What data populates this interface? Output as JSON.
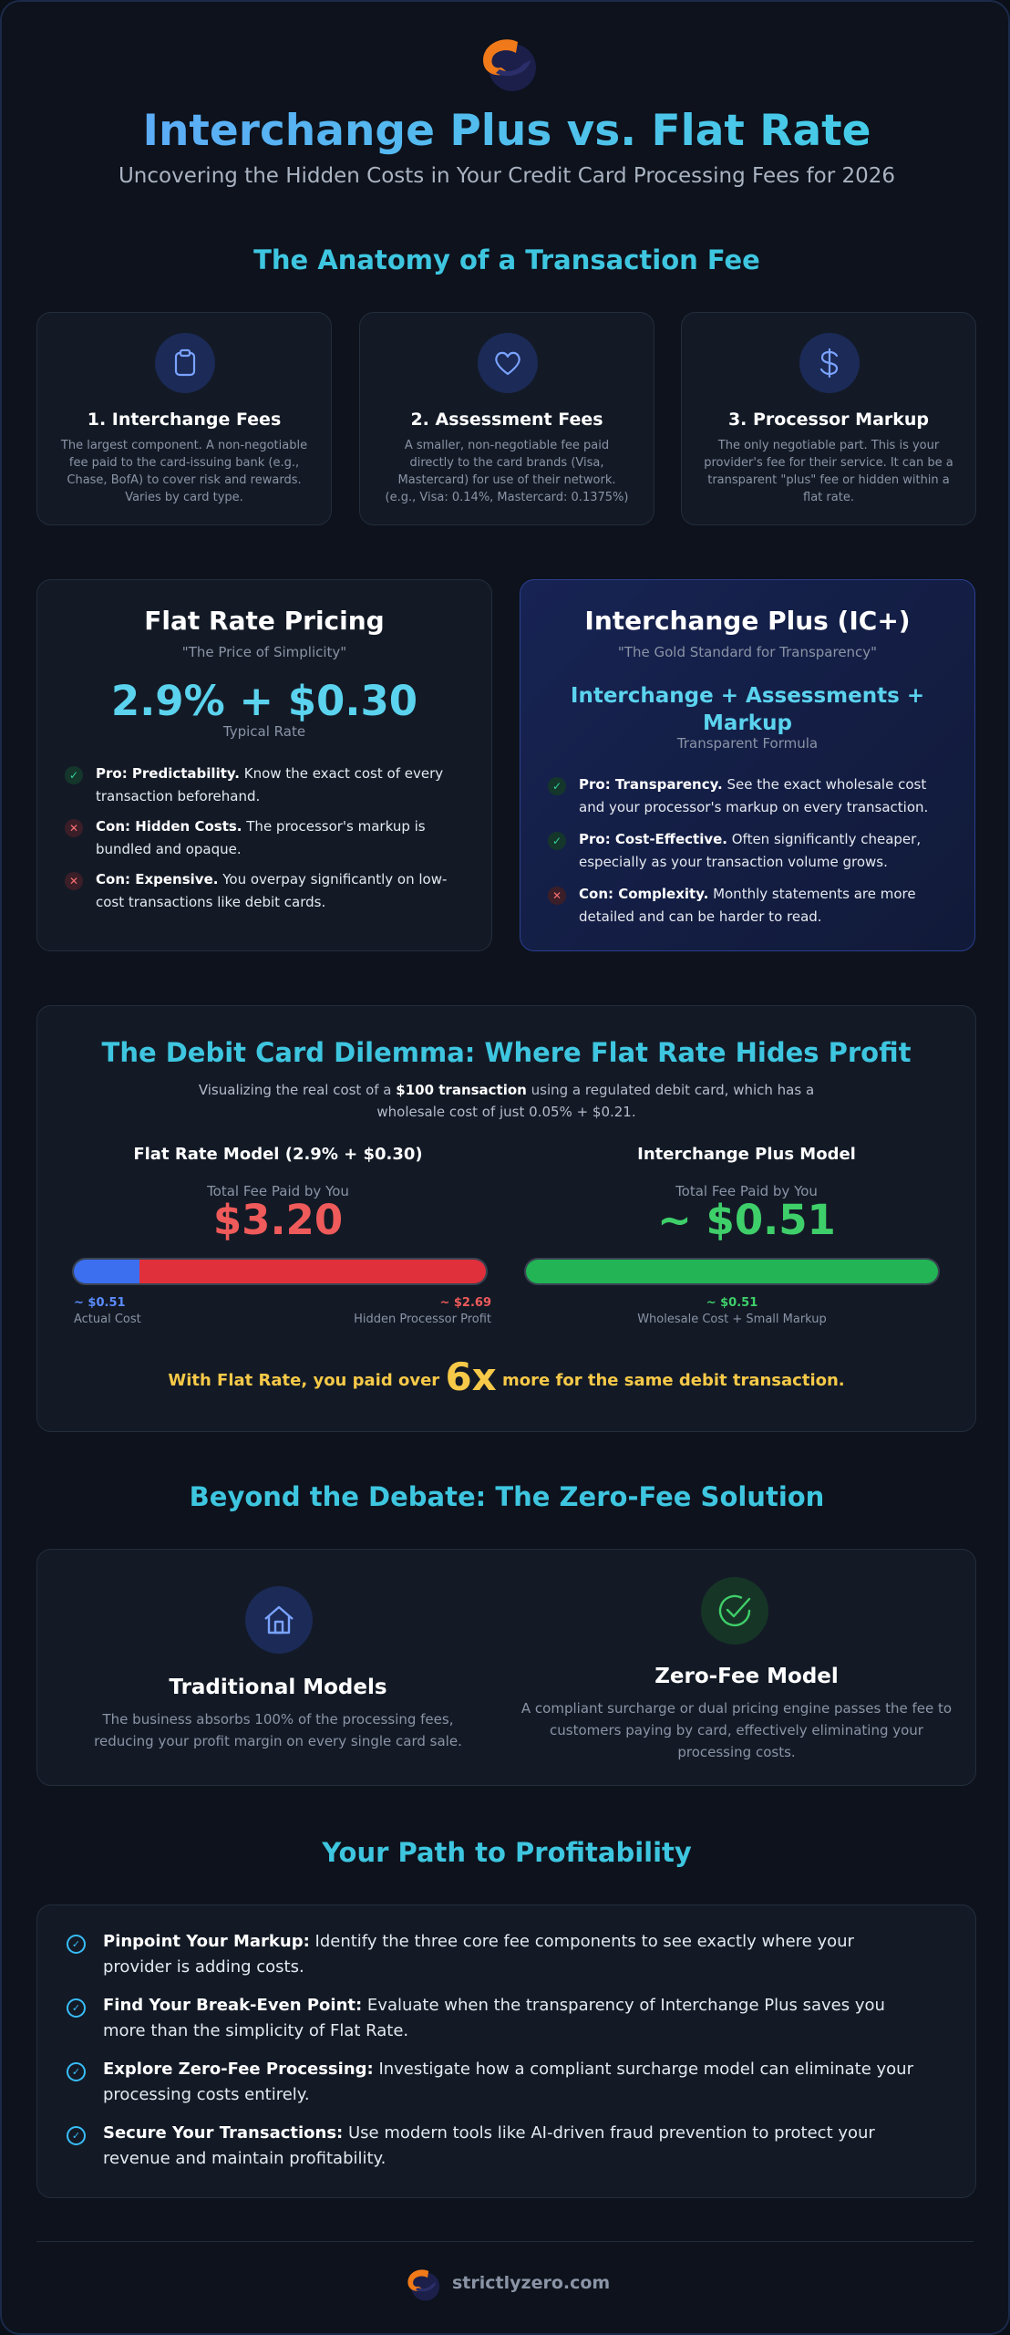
{
  "header": {
    "title": "Interchange Plus vs. Flat Rate",
    "subtitle": "Uncovering the Hidden Costs in Your Credit Card Processing Fees for 2026"
  },
  "anatomy": {
    "title": "The Anatomy of a Transaction Fee",
    "cards": [
      {
        "icon": "clipboard-icon",
        "title": "1. Interchange Fees",
        "desc": "The largest component. A non-negotiable fee paid to the card-issuing bank (e.g., Chase, BofA) to cover risk and rewards. Varies by card type."
      },
      {
        "icon": "heart-icon",
        "title": "2. Assessment Fees",
        "desc": "A smaller, non-negotiable fee paid directly to the card brands (Visa, Mastercard) for use of their network. (e.g., Visa: 0.14%, Mastercard: 0.1375%)"
      },
      {
        "icon": "dollar-icon",
        "title": "3. Processor Markup",
        "desc": "The only negotiable part. This is your provider's fee for their service. It can be a transparent \"plus\" fee or hidden within a flat rate."
      }
    ]
  },
  "flat_rate": {
    "title": "Flat Rate Pricing",
    "quote": "\"The Price of Simplicity\"",
    "price": "2.9% + $0.30",
    "price_caption": "Typical Rate",
    "items": [
      {
        "type": "pro",
        "label": "Pro: Predictability.",
        "text": " Know the exact cost of every transaction beforehand."
      },
      {
        "type": "con",
        "label": "Con: Hidden Costs.",
        "text": " The processor's markup is bundled and opaque."
      },
      {
        "type": "con",
        "label": "Con: Expensive.",
        "text": " You overpay significantly on low-cost transactions like debit cards."
      }
    ]
  },
  "ic_plus": {
    "title": "Interchange Plus (IC+)",
    "quote": "\"The Gold Standard for Transparency\"",
    "formula": "Interchange + Assessments + Markup",
    "formula_caption": "Transparent Formula",
    "items": [
      {
        "type": "pro",
        "label": "Pro: Transparency.",
        "text": " See the exact wholesale cost and your processor's markup on every transaction."
      },
      {
        "type": "pro",
        "label": "Pro: Cost-Effective.",
        "text": " Often significantly cheaper, especially as your transaction volume grows."
      },
      {
        "type": "con",
        "label": "Con: Complexity.",
        "text": " Monthly statements are more detailed and can be harder to read."
      }
    ]
  },
  "dilemma": {
    "title": "The Debit Card Dilemma: Where Flat Rate Hides Profit",
    "intro_before": "Visualizing the real cost of a ",
    "intro_bold": "$100 transaction",
    "intro_after": " using a regulated debit card, which has a wholesale cost of just 0.05% + $0.21.",
    "flat": {
      "heading": "Flat Rate Model (2.9% + $0.30)",
      "fee_label": "Total Fee Paid by You",
      "fee": "$3.20",
      "actual_share": 0.16,
      "actual_value": "~ $0.51",
      "actual_label": "Actual Cost",
      "hidden_value": "~ $2.69",
      "hidden_label": "Hidden Processor Profit"
    },
    "icplus": {
      "heading": "Interchange Plus Model",
      "fee_label": "Total Fee Paid by You",
      "fee": "~ $0.51",
      "value": "~ $0.51",
      "label": "Wholesale Cost + Small Markup"
    },
    "conclusion_before": "With Flat Rate, you paid over ",
    "conclusion_big": "6x",
    "conclusion_after": " more for the same debit transaction.",
    "colors": {
      "actual": "#3b6ff0",
      "hidden": "#e0303c",
      "icplus": "#22b455",
      "warning": "#f7c948"
    }
  },
  "zero_fee": {
    "title": "Beyond the Debate: The Zero-Fee Solution",
    "traditional": {
      "icon": "house-icon",
      "title": "Traditional Models",
      "desc": "The business absorbs 100% of the processing fees, reducing your profit margin on every single card sale."
    },
    "zero": {
      "icon": "check-circle-icon",
      "title": "Zero-Fee Model",
      "desc": "A compliant surcharge or dual pricing engine passes the fee to customers paying by card, effectively eliminating your processing costs."
    }
  },
  "path": {
    "title": "Your Path to Profitability",
    "items": [
      {
        "label": "Pinpoint Your Markup:",
        "text": " Identify the three core fee components to see exactly where your provider is adding costs."
      },
      {
        "label": "Find Your Break-Even Point:",
        "text": " Evaluate when the transparency of Interchange Plus saves you more than the simplicity of Flat Rate."
      },
      {
        "label": "Explore Zero-Fee Processing:",
        "text": " Investigate how a compliant surcharge model can eliminate your processing costs entirely."
      },
      {
        "label": "Secure Your Transactions:",
        "text": " Use modern tools like AI-driven fraud prevention to protect your revenue and maintain profitability."
      }
    ]
  },
  "footer": {
    "brand": "strictlyzero.com",
    "colors": {
      "logo_orange": "#f07a1a",
      "logo_navy": "#1b1f4a"
    }
  }
}
